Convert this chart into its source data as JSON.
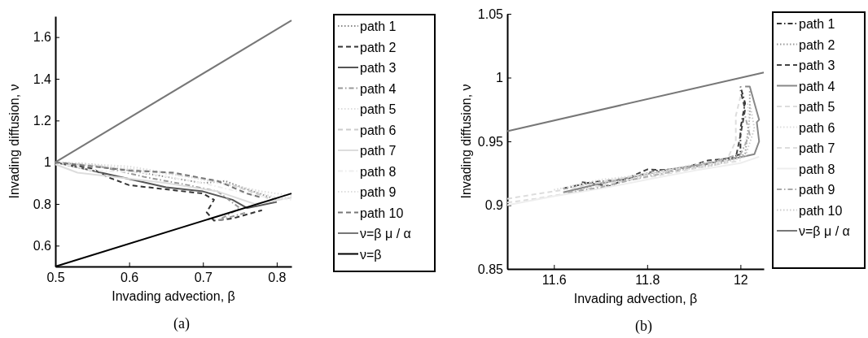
{
  "chart_data": [
    {
      "type": "line",
      "xlabel": "Invading advection, β",
      "ylabel": "Invading diffusion, ν",
      "xlim": [
        0.5,
        0.82
      ],
      "ylim": [
        0.5,
        1.7
      ],
      "xticks": [
        0.5,
        0.6,
        0.7,
        0.8
      ],
      "yticks": [
        0.6,
        0.8,
        1,
        1.2,
        1.4,
        1.6
      ],
      "legend": "right",
      "annotations": [
        "(a)"
      ],
      "series": [
        {
          "name": "path 1",
          "color": "#888888",
          "line_style": "dotted",
          "x": [
            0.5,
            0.55,
            0.6,
            0.65,
            0.7,
            0.73,
            0.76,
            0.8,
            0.82
          ],
          "values": [
            1.0,
            0.99,
            0.96,
            0.93,
            0.9,
            0.91,
            0.87,
            0.82,
            0.83
          ]
        },
        {
          "name": "path 2",
          "color": "#333333",
          "line_style": "dashed",
          "x": [
            0.5,
            0.55,
            0.57,
            0.6,
            0.65,
            0.7,
            0.715,
            0.705,
            0.715,
            0.74,
            0.78
          ],
          "values": [
            1.0,
            0.97,
            0.93,
            0.89,
            0.87,
            0.85,
            0.82,
            0.76,
            0.72,
            0.73,
            0.77
          ]
        },
        {
          "name": "path 3",
          "color": "#555555",
          "line_style": "solid",
          "x": [
            0.5,
            0.55,
            0.6,
            0.65,
            0.7,
            0.74,
            0.76,
            0.8
          ],
          "values": [
            1.0,
            0.96,
            0.92,
            0.88,
            0.86,
            0.82,
            0.78,
            0.81
          ]
        },
        {
          "name": "path 4",
          "color": "#999999",
          "line_style": "dashdot",
          "x": [
            0.5,
            0.56,
            0.62,
            0.68,
            0.72,
            0.75,
            0.72,
            0.76
          ],
          "values": [
            1.0,
            0.98,
            0.93,
            0.89,
            0.86,
            0.78,
            0.72,
            0.76
          ]
        },
        {
          "name": "path 5",
          "color": "#dddddd",
          "line_style": "dotted",
          "x": [
            0.5,
            0.6,
            0.7,
            0.78,
            0.82
          ],
          "values": [
            1.0,
            0.98,
            0.92,
            0.86,
            0.84
          ]
        },
        {
          "name": "path 6",
          "color": "#cccccc",
          "line_style": "dashed",
          "x": [
            0.5,
            0.58,
            0.65,
            0.7,
            0.74,
            0.78,
            0.8
          ],
          "values": [
            1.0,
            0.97,
            0.95,
            0.92,
            0.89,
            0.84,
            0.81
          ]
        },
        {
          "name": "path 7",
          "color": "#dddddd",
          "line_style": "solid",
          "x": [
            0.5,
            0.53,
            0.58,
            0.65,
            0.72,
            0.77,
            0.82
          ],
          "values": [
            0.99,
            0.95,
            0.93,
            0.9,
            0.86,
            0.8,
            0.83
          ]
        },
        {
          "name": "path 8",
          "color": "#eeeeee",
          "line_style": "dashdot",
          "x": [
            0.5,
            0.55,
            0.62,
            0.7,
            0.77,
            0.82
          ],
          "values": [
            1.0,
            0.96,
            0.95,
            0.9,
            0.84,
            0.82
          ]
        },
        {
          "name": "path 9",
          "color": "#dddddd",
          "line_style": "dotted",
          "x": [
            0.5,
            0.6,
            0.68,
            0.75,
            0.8
          ],
          "values": [
            1.0,
            0.97,
            0.93,
            0.88,
            0.83
          ]
        },
        {
          "name": "path 10",
          "color": "#777777",
          "line_style": "dashed",
          "x": [
            0.5,
            0.6,
            0.66,
            0.72,
            0.74,
            0.76,
            0.78
          ],
          "values": [
            1.0,
            0.96,
            0.95,
            0.91,
            0.88,
            0.85,
            0.83
          ]
        },
        {
          "name": "ν=β μ / α",
          "color": "#777777",
          "line_style": "solid",
          "x": [
            0.5,
            0.82
          ],
          "values": [
            1.0,
            1.68
          ]
        },
        {
          "name": "ν=β",
          "color": "#000000",
          "line_style": "solid",
          "x": [
            0.5,
            0.82
          ],
          "values": [
            0.5,
            0.85
          ]
        }
      ]
    },
    {
      "type": "line",
      "xlabel": "Invading advection, β",
      "ylabel": "Invading diffusion, ν",
      "xlim": [
        11.5,
        12.05
      ],
      "ylim": [
        0.85,
        1.05
      ],
      "xticks": [
        11.6,
        11.8,
        12
      ],
      "yticks": [
        0.85,
        0.9,
        0.95,
        1,
        1.05
      ],
      "legend": "right",
      "annotations": [
        "(b)"
      ],
      "series": [
        {
          "name": "path 1",
          "color": "#333333",
          "line_style": "dashdot",
          "x": [
            11.62,
            11.68,
            11.75,
            11.82,
            11.9,
            11.96,
            12.0,
            12.0,
            12.01,
            12.0
          ],
          "values": [
            0.913,
            0.918,
            0.92,
            0.927,
            0.93,
            0.935,
            0.94,
            0.96,
            0.98,
            0.993
          ]
        },
        {
          "name": "path 2",
          "color": "#999999",
          "line_style": "dotted",
          "x": [
            11.65,
            11.73,
            11.8,
            11.88,
            11.95,
            12.01,
            12.02,
            12.02
          ],
          "values": [
            0.912,
            0.92,
            0.925,
            0.93,
            0.932,
            0.94,
            0.97,
            0.99
          ]
        },
        {
          "name": "path 3",
          "color": "#444444",
          "line_style": "dashed",
          "x": [
            11.66,
            11.72,
            11.8,
            11.86,
            11.93,
            11.99,
            12.0,
            12.01,
            12.0
          ],
          "values": [
            0.918,
            0.915,
            0.928,
            0.927,
            0.935,
            0.937,
            0.955,
            0.975,
            0.99
          ]
        },
        {
          "name": "path 4",
          "color": "#888888",
          "line_style": "solid",
          "x": [
            11.62,
            11.7,
            11.78,
            11.85,
            11.92,
            11.98,
            12.03,
            12.04,
            12.035,
            12.04,
            12.03,
            12.02,
            12.01
          ],
          "values": [
            0.91,
            0.917,
            0.923,
            0.928,
            0.932,
            0.936,
            0.94,
            0.95,
            0.965,
            0.967,
            0.98,
            0.993,
            0.993
          ]
        },
        {
          "name": "path 5",
          "color": "#dddddd",
          "line_style": "dashed",
          "x": [
            11.5,
            11.55,
            11.62,
            11.7,
            11.8,
            11.9,
            11.97,
            11.99,
            11.99,
            12.0
          ],
          "values": [
            0.905,
            0.908,
            0.912,
            0.918,
            0.925,
            0.93,
            0.935,
            0.95,
            0.97,
            0.985
          ]
        },
        {
          "name": "path 6",
          "color": "#dddddd",
          "line_style": "dotted",
          "x": [
            11.6,
            11.7,
            11.8,
            11.9,
            12.0,
            12.02,
            12.015
          ],
          "values": [
            0.912,
            0.92,
            0.924,
            0.932,
            0.937,
            0.96,
            0.98
          ]
        },
        {
          "name": "path 7",
          "color": "#dddddd",
          "line_style": "dashed",
          "x": [
            11.5,
            11.56,
            11.64,
            11.72,
            11.82,
            11.92,
            12.0
          ],
          "values": [
            0.902,
            0.905,
            0.91,
            0.917,
            0.923,
            0.93,
            0.935
          ]
        },
        {
          "name": "path 8",
          "color": "#eeeeee",
          "line_style": "solid",
          "x": [
            11.5,
            11.6,
            11.7,
            11.8,
            11.9,
            12.0,
            12.04
          ],
          "values": [
            0.9,
            0.907,
            0.913,
            0.92,
            0.927,
            0.933,
            0.938
          ]
        },
        {
          "name": "path 9",
          "color": "#aaaaaa",
          "line_style": "dashdot",
          "x": [
            11.63,
            11.7,
            11.78,
            11.85,
            11.93,
            12.0,
            12.02,
            12.01
          ],
          "values": [
            0.91,
            0.914,
            0.921,
            0.926,
            0.933,
            0.94,
            0.955,
            0.97
          ]
        },
        {
          "name": "path 10",
          "color": "#cccccc",
          "line_style": "dotted",
          "x": [
            11.64,
            11.74,
            11.84,
            11.94,
            12.01,
            12.03,
            12.02
          ],
          "values": [
            0.915,
            0.919,
            0.926,
            0.931,
            0.938,
            0.96,
            0.98
          ]
        },
        {
          "name": "ν=β μ / α",
          "color": "#777777",
          "line_style": "solid",
          "x": [
            11.5,
            12.05
          ],
          "values": [
            0.958,
            1.004
          ]
        }
      ]
    }
  ]
}
